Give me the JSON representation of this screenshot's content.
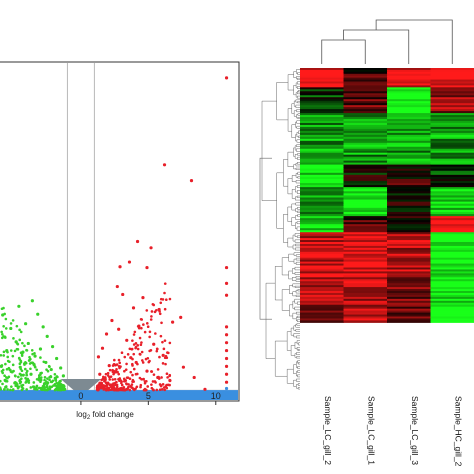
{
  "colors": {
    "up": "#e8202a",
    "down": "#39d12b",
    "ns": "#3a8fe0",
    "triangle": "#7d8a92",
    "heat_high": "#ff1a1a",
    "heat_low": "#19ff19",
    "heat_mid": "#000000"
  },
  "chart_data": [
    {
      "type": "scatter",
      "title": "",
      "xlabel": "log₂ fold change",
      "xlabel_base": "log",
      "xlabel_sub": "2",
      "xlabel_rest": " fold change",
      "ylabel": "",
      "xlim": [
        -6,
        11.5
      ],
      "ylim": [
        0,
        42
      ],
      "x_ticks": [
        0,
        5,
        10
      ],
      "cutoff_lines_x": [
        -1,
        1
      ],
      "series": [
        {
          "group": "up-regulated",
          "points": [
            [
              10.8,
              40.5
            ],
            [
              8.2,
              27.5
            ],
            [
              6.2,
              29.5
            ],
            [
              5.2,
              19
            ],
            [
              4.9,
              16.5
            ],
            [
              4.2,
              19.8
            ],
            [
              3.6,
              17.2
            ],
            [
              3.1,
              13.1
            ],
            [
              2.9,
              16.6
            ],
            [
              2.7,
              14.1
            ],
            [
              6.8,
              9.6
            ],
            [
              7.4,
              10.2
            ],
            [
              5.8,
              11.2
            ],
            [
              4.6,
              12.7
            ],
            [
              3.9,
              11.4
            ],
            [
              2.3,
              9.8
            ],
            [
              1.9,
              8.1
            ],
            [
              1.6,
              6.3
            ],
            [
              1.3,
              5.2
            ],
            [
              3.4,
              7.3
            ],
            [
              4.3,
              9.1
            ],
            [
              5.4,
              6.8
            ],
            [
              2.8,
              8.7
            ],
            [
              3.7,
              5.1
            ],
            [
              2.1,
              4.1
            ],
            [
              1.4,
              3.0
            ],
            [
              4.9,
              3.4
            ],
            [
              6.1,
              5.4
            ],
            [
              7.6,
              3.9
            ],
            [
              8.4,
              2.6
            ],
            [
              3.3,
              2.2
            ],
            [
              2.6,
              3.3
            ],
            [
              1.8,
              2.4
            ],
            [
              4.1,
              4.5
            ],
            [
              5.7,
              2.6
            ],
            [
              6.6,
              2.2
            ],
            [
              1.5,
              1.6
            ],
            [
              2.4,
              1.5
            ],
            [
              3.0,
              1.2
            ],
            [
              9.2,
              1.1
            ],
            [
              10.8,
              2.0
            ],
            [
              10.8,
              3.0
            ],
            [
              10.8,
              4.0
            ],
            [
              10.8,
              5.0
            ],
            [
              10.8,
              6.0
            ],
            [
              10.8,
              7.0
            ],
            [
              10.8,
              8.0
            ],
            [
              10.8,
              9.0
            ],
            [
              10.8,
              13.0
            ],
            [
              10.8,
              14.5
            ],
            [
              10.8,
              16.5
            ]
          ]
        },
        {
          "group": "down-regulated",
          "points": [
            [
              -5.8,
              10.5
            ],
            [
              -5.2,
              8.8
            ],
            [
              -4.6,
              11.6
            ],
            [
              -4.1,
              9.4
            ],
            [
              -3.6,
              12.3
            ],
            [
              -3.2,
              10.6
            ],
            [
              -2.8,
              9.0
            ],
            [
              -2.5,
              7.8
            ],
            [
              -2.1,
              6.5
            ],
            [
              -1.8,
              5.0
            ],
            [
              -1.5,
              3.8
            ],
            [
              -1.3,
              2.8
            ],
            [
              -5.5,
              6.0
            ],
            [
              -4.8,
              7.1
            ],
            [
              -4.3,
              5.8
            ],
            [
              -3.9,
              6.9
            ],
            [
              -3.4,
              5.3
            ],
            [
              -3.0,
              6.2
            ],
            [
              -2.6,
              4.5
            ],
            [
              -2.2,
              3.6
            ],
            [
              -1.9,
              2.5
            ],
            [
              -5.9,
              4.0
            ],
            [
              -5.1,
              3.3
            ],
            [
              -4.5,
              3.9
            ],
            [
              -3.7,
              3.0
            ],
            [
              -3.1,
              2.3
            ],
            [
              -2.7,
              1.8
            ],
            [
              -2.3,
              1.4
            ],
            [
              -1.6,
              1.5
            ],
            [
              -4.9,
              1.9
            ],
            [
              -4.0,
              2.2
            ],
            [
              -5.6,
              2.2
            ],
            [
              -3.5,
              1.4
            ],
            [
              -1.2,
              1.1
            ]
          ]
        },
        {
          "group": "not significant",
          "points": [
            [
              -5.5,
              0.3
            ],
            [
              -4.5,
              0.5
            ],
            [
              -3.5,
              0.8
            ],
            [
              -2.5,
              0.4
            ],
            [
              -1.5,
              0.6
            ],
            [
              -0.5,
              0.3
            ],
            [
              0.5,
              0.5
            ],
            [
              1.5,
              0.9
            ],
            [
              2.5,
              0.6
            ],
            [
              3.5,
              0.4
            ],
            [
              4.5,
              0.7
            ],
            [
              5.5,
              0.5
            ],
            [
              6.5,
              0.3
            ],
            [
              7.5,
              0.6
            ],
            [
              8.5,
              0.4
            ],
            [
              9.5,
              0.2
            ],
            [
              10.8,
              0.5
            ],
            [
              10.8,
              1.2
            ]
          ]
        }
      ]
    },
    {
      "type": "heatmap",
      "title": "",
      "columns": [
        "Sample_LC_gill_2",
        "Sample_LC_gill_1",
        "Sample_LC_gill_3",
        "Sample_HC_gill_2"
      ],
      "color_scale": [
        "low: green",
        "mid: black",
        "high: red"
      ],
      "row_blocks": [
        {
          "fraction": 0.06,
          "values": [
            1,
            0.2,
            0.9,
            1
          ]
        },
        {
          "fraction": 0.08,
          "values": [
            -0.2,
            0.4,
            -1,
            0.6
          ]
        },
        {
          "fraction": 0.16,
          "values": [
            -0.6,
            -0.6,
            -0.6,
            -0.6
          ]
        },
        {
          "fraction": 0.07,
          "values": [
            -0.9,
            0,
            0.2,
            -0.2
          ]
        },
        {
          "fraction": 0.09,
          "values": [
            -0.7,
            -1,
            0.1,
            -0.9
          ]
        },
        {
          "fraction": 0.05,
          "values": [
            -0.9,
            0.3,
            0.1,
            1
          ]
        },
        {
          "fraction": 0.14,
          "values": [
            0.8,
            0.9,
            0.7,
            -1
          ]
        },
        {
          "fraction": 0.14,
          "values": [
            0.6,
            0.7,
            0.5,
            -1
          ]
        }
      ]
    }
  ]
}
